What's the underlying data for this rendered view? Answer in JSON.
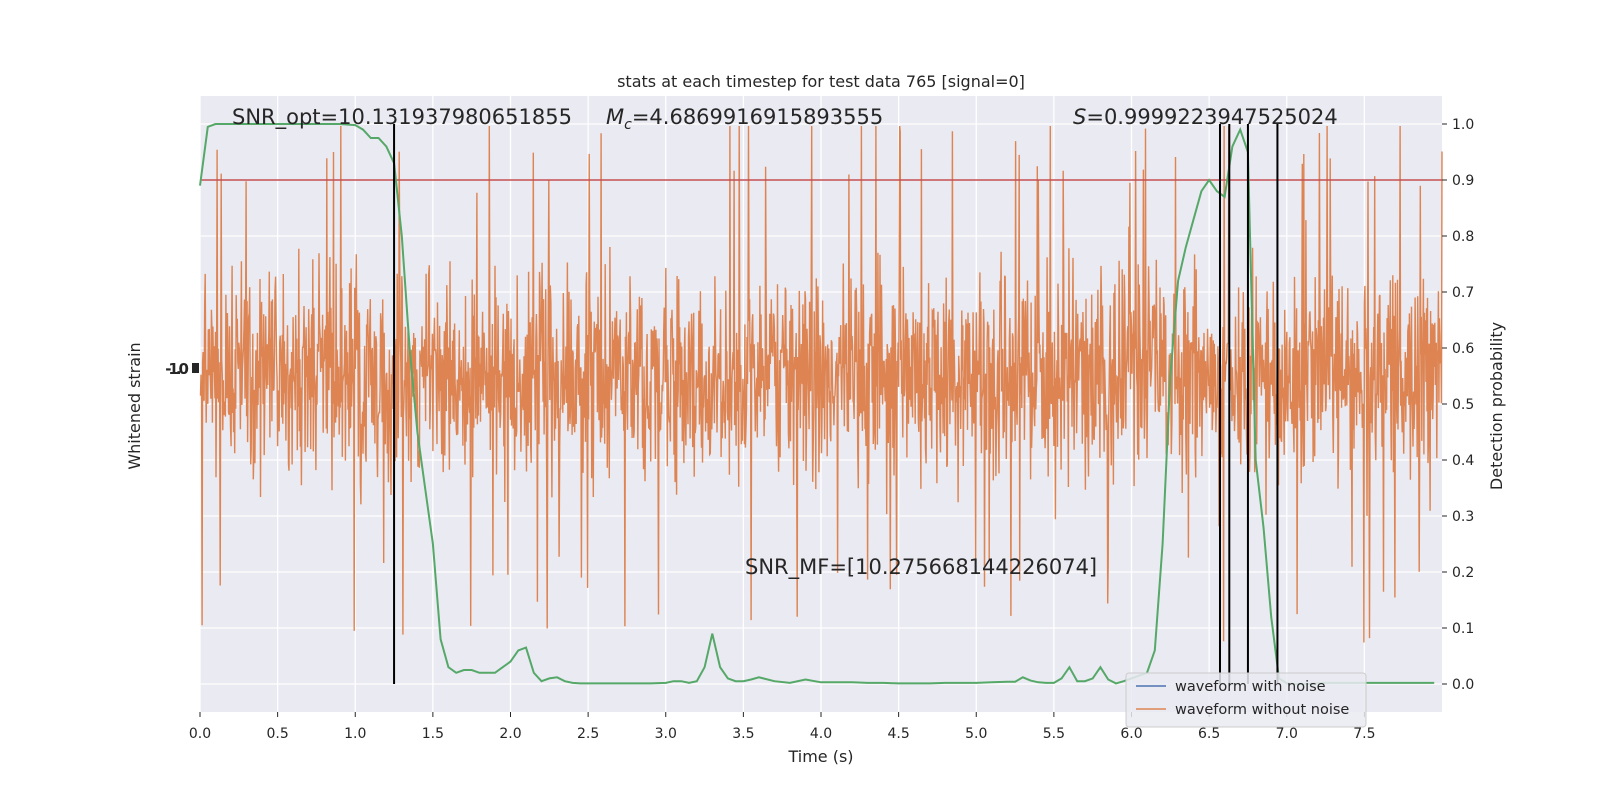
{
  "chart_data": {
    "type": "line",
    "title": "stats at each timestep for test data 765 [signal=0]",
    "xlabel": "Time (s)",
    "ylabel_left": "Whitened strain",
    "ylabel_right": "Detection probability",
    "xlim": [
      0.0,
      8.0
    ],
    "ylim_right": [
      -0.05,
      1.05
    ],
    "x_ticks": [
      "0.0",
      "0.5",
      "1.0",
      "1.5",
      "2.0",
      "2.5",
      "3.0",
      "3.5",
      "4.0",
      "4.5",
      "5.0",
      "5.5",
      "6.0",
      "6.5",
      "7.0",
      "7.5"
    ],
    "y_ticks_right": [
      "0.0",
      "0.1",
      "0.2",
      "0.3",
      "0.4",
      "0.5",
      "0.6",
      "0.7",
      "0.8",
      "0.9",
      "1.0"
    ],
    "left_tick_label": "-1.0",
    "grid": true,
    "legend_position": "lower right",
    "annotations": {
      "snr_opt": "SNR_opt=10.131937980651855",
      "mc_symbol": "M",
      "mc_sub": "c",
      "mc_value": "=4.6869916915893555",
      "s_symbol": "S",
      "s_value": "=0.9999223947525024",
      "snr_mf": "SNR_MF=[10.275668144226074]"
    },
    "threshold": 0.9,
    "vertical_lines_x": [
      1.25,
      6.57,
      6.63,
      6.75,
      6.94
    ],
    "series": [
      {
        "name": "waveform with noise",
        "color": "#4c72b0",
        "kind": "strain"
      },
      {
        "name": "waveform without noise",
        "color": "#dd8452",
        "kind": "strain"
      },
      {
        "kind": "probability",
        "color": "#55a868",
        "x": [
          0.0,
          0.05,
          0.1,
          0.2,
          0.3,
          0.4,
          0.5,
          0.6,
          0.7,
          0.8,
          0.9,
          1.0,
          1.05,
          1.1,
          1.15,
          1.2,
          1.25,
          1.3,
          1.35,
          1.4,
          1.45,
          1.5,
          1.55,
          1.6,
          1.65,
          1.7,
          1.75,
          1.8,
          1.85,
          1.9,
          1.95,
          2.0,
          2.05,
          2.1,
          2.15,
          2.2,
          2.25,
          2.3,
          2.35,
          2.4,
          2.45,
          2.5,
          2.6,
          2.7,
          2.8,
          2.9,
          3.0,
          3.05,
          3.1,
          3.15,
          3.2,
          3.25,
          3.3,
          3.35,
          3.4,
          3.45,
          3.5,
          3.55,
          3.6,
          3.7,
          3.8,
          3.9,
          4.0,
          4.1,
          4.2,
          4.3,
          4.4,
          4.5,
          4.6,
          4.7,
          4.8,
          4.9,
          5.0,
          5.1,
          5.2,
          5.25,
          5.3,
          5.35,
          5.4,
          5.45,
          5.5,
          5.55,
          5.6,
          5.65,
          5.7,
          5.75,
          5.8,
          5.85,
          5.9,
          5.95,
          6.0,
          6.05,
          6.1,
          6.15,
          6.2,
          6.25,
          6.3,
          6.35,
          6.4,
          6.45,
          6.5,
          6.55,
          6.6,
          6.65,
          6.7,
          6.75,
          6.8,
          6.85,
          6.9,
          6.95,
          7.0,
          7.05,
          7.1,
          7.15,
          7.2,
          7.25,
          7.3,
          7.4,
          7.5,
          7.6,
          7.7,
          7.8,
          7.9,
          7.95
        ],
        "values": [
          0.89,
          0.995,
          1.0,
          1.0,
          1.0,
          1.0,
          1.0,
          1.0,
          1.0,
          1.0,
          1.0,
          0.998,
          0.99,
          0.975,
          0.975,
          0.96,
          0.93,
          0.8,
          0.6,
          0.45,
          0.35,
          0.25,
          0.08,
          0.03,
          0.02,
          0.025,
          0.025,
          0.02,
          0.02,
          0.02,
          0.03,
          0.04,
          0.06,
          0.065,
          0.02,
          0.005,
          0.01,
          0.012,
          0.005,
          0.002,
          0.001,
          0.001,
          0.001,
          0.001,
          0.001,
          0.001,
          0.002,
          0.005,
          0.005,
          0.002,
          0.005,
          0.03,
          0.09,
          0.03,
          0.01,
          0.005,
          0.005,
          0.008,
          0.012,
          0.005,
          0.002,
          0.008,
          0.003,
          0.003,
          0.003,
          0.002,
          0.002,
          0.001,
          0.001,
          0.001,
          0.002,
          0.002,
          0.002,
          0.003,
          0.004,
          0.004,
          0.012,
          0.006,
          0.003,
          0.002,
          0.002,
          0.01,
          0.03,
          0.005,
          0.005,
          0.01,
          0.03,
          0.008,
          0.001,
          0.005,
          0.01,
          0.015,
          0.02,
          0.06,
          0.25,
          0.55,
          0.72,
          0.78,
          0.83,
          0.88,
          0.9,
          0.88,
          0.87,
          0.96,
          0.99,
          0.95,
          0.4,
          0.28,
          0.12,
          0.01,
          0.001,
          0.0,
          0.0,
          0.0,
          0.001,
          0.002,
          0.002,
          0.002,
          0.002,
          0.002,
          0.002,
          0.002,
          0.002,
          0.002
        ]
      }
    ]
  }
}
